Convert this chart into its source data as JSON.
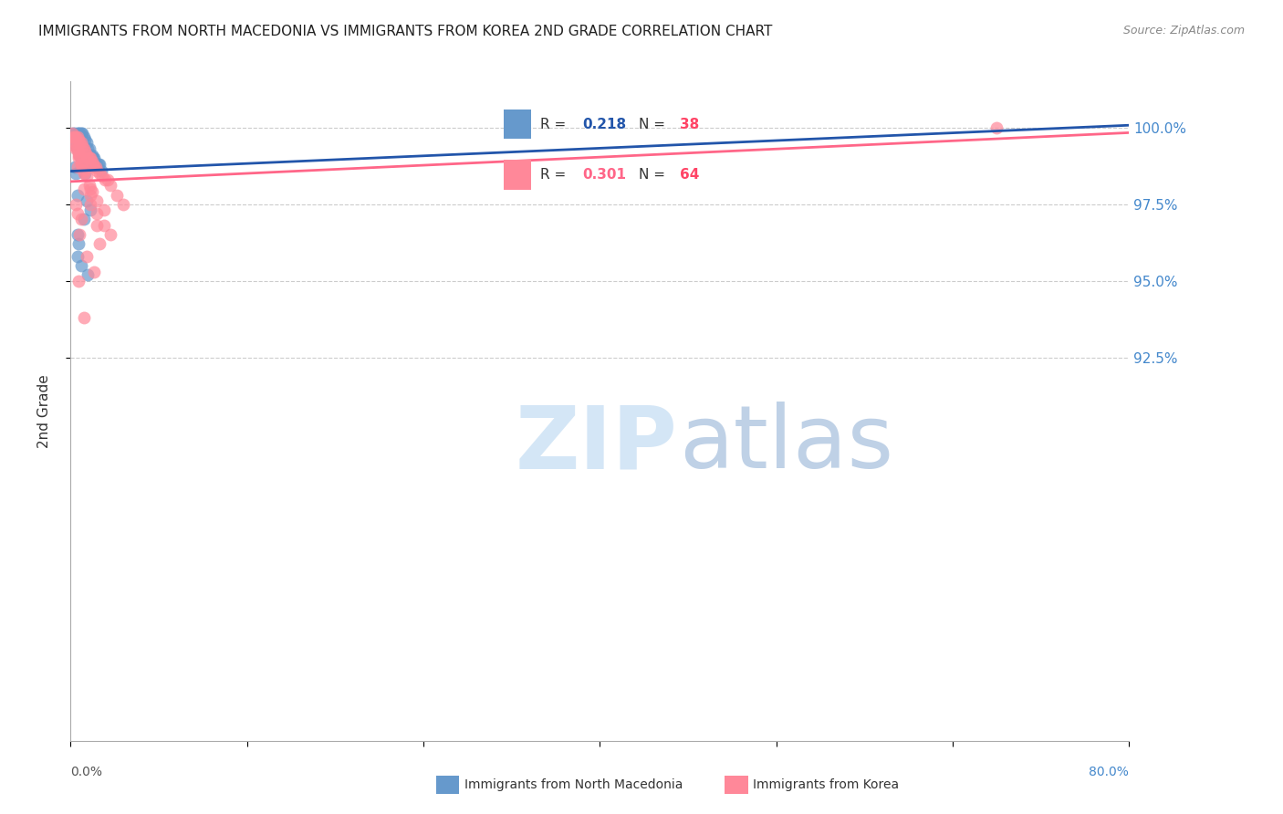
{
  "title": "IMMIGRANTS FROM NORTH MACEDONIA VS IMMIGRANTS FROM KOREA 2ND GRADE CORRELATION CHART",
  "source": "Source: ZipAtlas.com",
  "ylabel": "2nd Grade",
  "yticks": [
    100.0,
    97.5,
    95.0,
    92.5
  ],
  "ytick_labels": [
    "100.0%",
    "97.5%",
    "95.0%",
    "92.5%"
  ],
  "ymin": 80.0,
  "ymax": 101.5,
  "xmin": 0.0,
  "xmax": 80.0,
  "blue_R": 0.218,
  "blue_N": 38,
  "pink_R": 0.301,
  "pink_N": 64,
  "blue_color": "#6699CC",
  "pink_color": "#FF8899",
  "trend_blue_color": "#2255AA",
  "trend_pink_color": "#FF6688",
  "blue_x": [
    0.2,
    0.3,
    0.5,
    0.6,
    0.7,
    0.8,
    0.9,
    1.0,
    1.1,
    1.2,
    1.3,
    1.4,
    1.5,
    1.6,
    1.7,
    1.8,
    2.0,
    2.1,
    2.2,
    2.3,
    0.4,
    0.5,
    0.6,
    0.7,
    0.8,
    1.0,
    1.1,
    0.3,
    0.4,
    0.5,
    1.2,
    1.5,
    1.0,
    0.5,
    0.6,
    0.5,
    0.8,
    1.3
  ],
  "blue_y": [
    99.8,
    99.8,
    99.8,
    99.8,
    99.8,
    99.8,
    99.8,
    99.7,
    99.6,
    99.5,
    99.3,
    99.3,
    99.1,
    99.1,
    99.0,
    99.0,
    98.8,
    98.8,
    98.8,
    98.6,
    99.4,
    99.3,
    99.2,
    99.1,
    99.0,
    98.7,
    98.5,
    98.7,
    98.5,
    97.8,
    97.6,
    97.3,
    97.0,
    96.5,
    96.2,
    95.8,
    95.5,
    95.2
  ],
  "pink_x": [
    0.1,
    0.2,
    0.3,
    0.4,
    0.5,
    0.6,
    0.7,
    0.8,
    0.9,
    1.0,
    1.1,
    1.2,
    1.3,
    1.4,
    1.5,
    1.6,
    1.7,
    1.8,
    1.9,
    2.0,
    2.2,
    2.4,
    2.6,
    2.8,
    3.0,
    3.5,
    4.0,
    0.5,
    0.6,
    0.7,
    0.8,
    0.9,
    1.0,
    1.2,
    1.4,
    1.6,
    2.0,
    2.5,
    0.3,
    0.4,
    0.6,
    0.8,
    1.0,
    1.5,
    2.0,
    3.0,
    0.5,
    1.0,
    1.5,
    2.5,
    0.7,
    1.2,
    1.8,
    2.2,
    0.6,
    1.0,
    0.4,
    0.8,
    0.3,
    0.6,
    1.5,
    2.0,
    0.5,
    70.0
  ],
  "pink_y": [
    99.8,
    99.7,
    99.7,
    99.7,
    99.7,
    99.6,
    99.5,
    99.5,
    99.4,
    99.3,
    99.2,
    99.1,
    99.0,
    99.0,
    99.0,
    98.9,
    98.8,
    98.7,
    98.7,
    98.6,
    98.5,
    98.4,
    98.3,
    98.3,
    98.1,
    97.8,
    97.5,
    99.3,
    99.2,
    99.1,
    98.8,
    98.8,
    98.6,
    98.4,
    98.1,
    97.9,
    97.6,
    97.3,
    99.4,
    99.3,
    99.1,
    98.8,
    98.5,
    97.8,
    97.2,
    96.5,
    98.7,
    98.0,
    97.5,
    96.8,
    96.5,
    95.8,
    95.3,
    96.2,
    95.0,
    93.8,
    97.5,
    97.0,
    99.5,
    99.0,
    98.0,
    96.8,
    97.2,
    100.0
  ]
}
